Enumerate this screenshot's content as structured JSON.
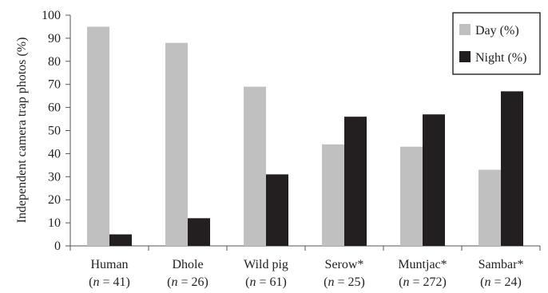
{
  "chart_data": {
    "type": "bar",
    "ylabel": "Independent camera trap photos (%)",
    "ylim": [
      0,
      100
    ],
    "yticks": [
      0,
      10,
      20,
      30,
      40,
      50,
      60,
      70,
      80,
      90,
      100
    ],
    "categories": [
      "Human",
      "Dhole",
      "Wild pig",
      "Serow*",
      "Muntjac*",
      "Sambar*"
    ],
    "category_n": [
      "41",
      "26",
      "61",
      "25",
      "272",
      "24"
    ],
    "n_prefix": "(",
    "n_var": "n",
    "n_eq": " = ",
    "n_suffix": ")",
    "series": [
      {
        "name": "Day (%)",
        "color": "#c0c0c0",
        "values": [
          95,
          88,
          69,
          44,
          43,
          33
        ]
      },
      {
        "name": "Night (%)",
        "color": "#231f20",
        "values": [
          5,
          12,
          31,
          56,
          57,
          67
        ]
      }
    ],
    "legend_position": "top-right",
    "grid": false
  }
}
